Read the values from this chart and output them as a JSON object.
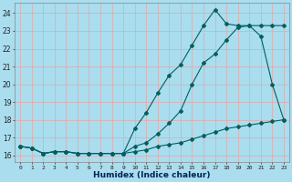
{
  "xlabel": "Humidex (Indice chaleur)",
  "bg_color": "#aaddee",
  "grid_color": "#ddaaaa",
  "line_color": "#006060",
  "xlim": [
    -0.5,
    23.5
  ],
  "ylim": [
    15.6,
    24.6
  ],
  "xticks": [
    0,
    1,
    2,
    3,
    4,
    5,
    6,
    7,
    8,
    9,
    10,
    11,
    12,
    13,
    14,
    15,
    16,
    17,
    18,
    19,
    20,
    21,
    22,
    23
  ],
  "yticks": [
    16,
    17,
    18,
    19,
    20,
    21,
    22,
    23,
    24
  ],
  "line1_x": [
    0,
    1,
    2,
    3,
    4,
    5,
    6,
    7,
    8,
    9,
    10,
    11,
    12,
    13,
    14,
    15,
    16,
    17,
    18,
    19,
    20,
    21,
    22,
    23
  ],
  "line1_y": [
    16.5,
    16.4,
    16.1,
    16.2,
    16.2,
    16.1,
    16.1,
    16.1,
    16.1,
    16.1,
    17.5,
    18.4,
    19.5,
    20.5,
    21.1,
    22.2,
    23.3,
    24.2,
    23.4,
    23.3,
    23.3,
    22.7,
    20.0,
    18.0
  ],
  "line2_x": [
    0,
    1,
    2,
    3,
    4,
    5,
    6,
    7,
    8,
    9,
    10,
    11,
    12,
    13,
    14,
    15,
    16,
    17,
    18,
    19,
    20,
    21,
    22,
    23
  ],
  "line2_y": [
    16.5,
    16.4,
    16.1,
    16.2,
    16.2,
    16.1,
    16.1,
    16.1,
    16.1,
    16.1,
    16.5,
    16.7,
    17.2,
    17.8,
    18.5,
    20.0,
    21.2,
    21.7,
    22.5,
    23.2,
    23.3,
    23.3,
    23.3,
    23.3
  ],
  "line3_x": [
    0,
    1,
    2,
    3,
    4,
    5,
    6,
    7,
    8,
    9,
    10,
    11,
    12,
    13,
    14,
    15,
    16,
    17,
    18,
    19,
    20,
    21,
    22,
    23
  ],
  "line3_y": [
    16.5,
    16.4,
    16.1,
    16.2,
    16.2,
    16.1,
    16.1,
    16.1,
    16.1,
    16.1,
    16.2,
    16.3,
    16.5,
    16.6,
    16.7,
    16.9,
    17.1,
    17.3,
    17.5,
    17.6,
    17.7,
    17.8,
    17.9,
    18.0
  ]
}
